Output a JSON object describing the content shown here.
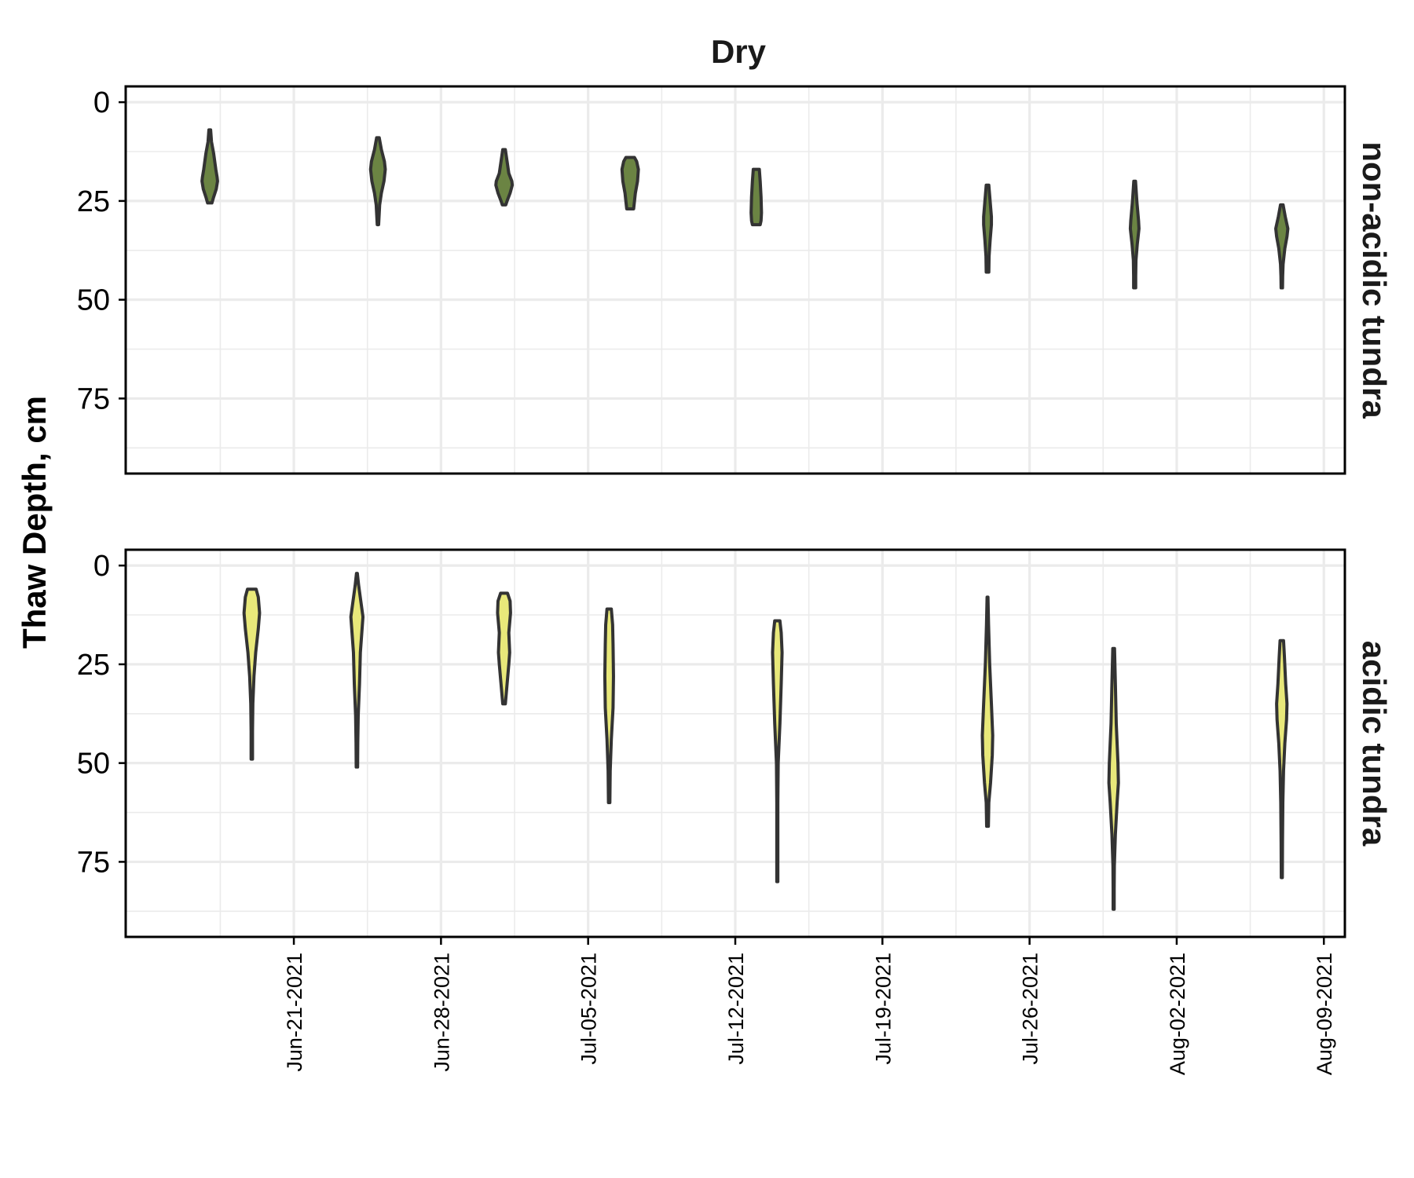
{
  "chart_data": {
    "type": "violin",
    "title": "Dry",
    "ylabel": "Thaw Depth, cm",
    "xlabel": "",
    "y_reversed": true,
    "ylim": [
      -4,
      94
    ],
    "y_ticks": [
      0,
      25,
      50,
      75
    ],
    "y_tick_labels": [
      "0",
      "25",
      "50",
      "75"
    ],
    "xlim": [
      "2021-06-13",
      "2021-08-10"
    ],
    "x_ticks": [
      "2021-06-21",
      "2021-06-28",
      "2021-07-05",
      "2021-07-12",
      "2021-07-19",
      "2021-07-26",
      "2021-08-02",
      "2021-08-09"
    ],
    "x_tick_labels": [
      "Jun-21-2021",
      "Jun-28-2021",
      "Jul-05-2021",
      "Jul-12-2021",
      "Jul-19-2021",
      "Jul-26-2021",
      "Aug-02-2021",
      "Aug-09-2021"
    ],
    "grid": true,
    "panels": [
      {
        "strip_label": "non-acidic tundra",
        "fill_color": "#6b8443",
        "violins": [
          {
            "date": "2021-06-17",
            "profile": [
              [
                7,
                0.1
              ],
              [
                10,
                0.2
              ],
              [
                13,
                0.45
              ],
              [
                17,
                0.7
              ],
              [
                19,
                0.85
              ],
              [
                20,
                0.9
              ],
              [
                22,
                0.75
              ],
              [
                24,
                0.45
              ],
              [
                25.5,
                0.25
              ]
            ]
          },
          {
            "date": "2021-06-25",
            "profile": [
              [
                9,
                0.15
              ],
              [
                12,
                0.4
              ],
              [
                15,
                0.75
              ],
              [
                17,
                0.85
              ],
              [
                20,
                0.7
              ],
              [
                23,
                0.4
              ],
              [
                26,
                0.2
              ],
              [
                31,
                0.08
              ]
            ]
          },
          {
            "date": "2021-07-01",
            "profile": [
              [
                12,
                0.15
              ],
              [
                15,
                0.35
              ],
              [
                18,
                0.55
              ],
              [
                20,
                0.9
              ],
              [
                21,
                0.95
              ],
              [
                23,
                0.7
              ],
              [
                25,
                0.35
              ],
              [
                26,
                0.2
              ]
            ]
          },
          {
            "date": "2021-07-07",
            "profile": [
              [
                14,
                0.5
              ],
              [
                15,
                0.75
              ],
              [
                17,
                0.95
              ],
              [
                20,
                0.85
              ],
              [
                23,
                0.6
              ],
              [
                26,
                0.45
              ],
              [
                27,
                0.4
              ]
            ]
          },
          {
            "date": "2021-07-13",
            "profile": [
              [
                17,
                0.35
              ],
              [
                20,
                0.45
              ],
              [
                24,
                0.55
              ],
              [
                28,
                0.6
              ],
              [
                30,
                0.55
              ],
              [
                31,
                0.45
              ]
            ]
          },
          {
            "date": "2021-07-24",
            "profile": [
              [
                21,
                0.15
              ],
              [
                25,
                0.3
              ],
              [
                29,
                0.45
              ],
              [
                31,
                0.45
              ],
              [
                35,
                0.3
              ],
              [
                39,
                0.18
              ],
              [
                43,
                0.15
              ]
            ]
          },
          {
            "date": "2021-07-31",
            "profile": [
              [
                20,
                0.1
              ],
              [
                25,
                0.25
              ],
              [
                30,
                0.45
              ],
              [
                32,
                0.5
              ],
              [
                36,
                0.3
              ],
              [
                40,
                0.15
              ],
              [
                44,
                0.12
              ],
              [
                47,
                0.12
              ]
            ]
          },
          {
            "date": "2021-08-07",
            "profile": [
              [
                26,
                0.15
              ],
              [
                29,
                0.4
              ],
              [
                32,
                0.7
              ],
              [
                34,
                0.6
              ],
              [
                37,
                0.35
              ],
              [
                41,
                0.15
              ],
              [
                44,
                0.1
              ],
              [
                47,
                0.08
              ]
            ]
          }
        ]
      },
      {
        "strip_label": "acidic tundra",
        "fill_color": "#e8e87a",
        "violins": [
          {
            "date": "2021-06-19",
            "profile": [
              [
                6,
                0.5
              ],
              [
                8,
                0.75
              ],
              [
                12,
                0.9
              ],
              [
                16,
                0.75
              ],
              [
                22,
                0.45
              ],
              [
                28,
                0.25
              ],
              [
                35,
                0.12
              ],
              [
                42,
                0.08
              ],
              [
                49,
                0.08
              ]
            ]
          },
          {
            "date": "2021-06-24",
            "profile": [
              [
                2,
                0.05
              ],
              [
                5,
                0.2
              ],
              [
                9,
                0.45
              ],
              [
                13,
                0.7
              ],
              [
                16,
                0.6
              ],
              [
                22,
                0.4
              ],
              [
                30,
                0.3
              ],
              [
                38,
                0.15
              ],
              [
                45,
                0.1
              ],
              [
                51,
                0.08
              ]
            ]
          },
          {
            "date": "2021-07-01",
            "profile": [
              [
                7,
                0.4
              ],
              [
                9,
                0.7
              ],
              [
                12,
                0.75
              ],
              [
                17,
                0.55
              ],
              [
                22,
                0.65
              ],
              [
                25,
                0.55
              ],
              [
                30,
                0.35
              ],
              [
                35,
                0.15
              ]
            ]
          },
          {
            "date": "2021-07-06",
            "profile": [
              [
                11,
                0.25
              ],
              [
                15,
                0.4
              ],
              [
                20,
                0.45
              ],
              [
                28,
                0.5
              ],
              [
                36,
                0.45
              ],
              [
                44,
                0.25
              ],
              [
                52,
                0.12
              ],
              [
                60,
                0.08
              ]
            ]
          },
          {
            "date": "2021-07-14",
            "profile": [
              [
                14,
                0.3
              ],
              [
                17,
                0.45
              ],
              [
                22,
                0.55
              ],
              [
                30,
                0.45
              ],
              [
                40,
                0.3
              ],
              [
                50,
                0.1
              ],
              [
                60,
                0.06
              ],
              [
                70,
                0.06
              ],
              [
                80,
                0.06
              ]
            ]
          },
          {
            "date": "2021-07-24",
            "profile": [
              [
                8,
                0.05
              ],
              [
                15,
                0.12
              ],
              [
                25,
                0.25
              ],
              [
                35,
                0.45
              ],
              [
                43,
                0.6
              ],
              [
                48,
                0.55
              ],
              [
                55,
                0.35
              ],
              [
                60,
                0.15
              ],
              [
                66,
                0.1
              ]
            ]
          },
          {
            "date": "2021-07-30",
            "profile": [
              [
                21,
                0.1
              ],
              [
                30,
                0.2
              ],
              [
                40,
                0.3
              ],
              [
                50,
                0.5
              ],
              [
                55,
                0.55
              ],
              [
                60,
                0.4
              ],
              [
                68,
                0.2
              ],
              [
                76,
                0.08
              ],
              [
                82,
                0.06
              ],
              [
                87,
                0.06
              ]
            ]
          },
          {
            "date": "2021-08-07",
            "profile": [
              [
                19,
                0.2
              ],
              [
                23,
                0.3
              ],
              [
                30,
                0.45
              ],
              [
                35,
                0.6
              ],
              [
                39,
                0.55
              ],
              [
                45,
                0.35
              ],
              [
                52,
                0.2
              ],
              [
                60,
                0.12
              ],
              [
                70,
                0.08
              ],
              [
                79,
                0.06
              ]
            ]
          }
        ]
      }
    ]
  }
}
